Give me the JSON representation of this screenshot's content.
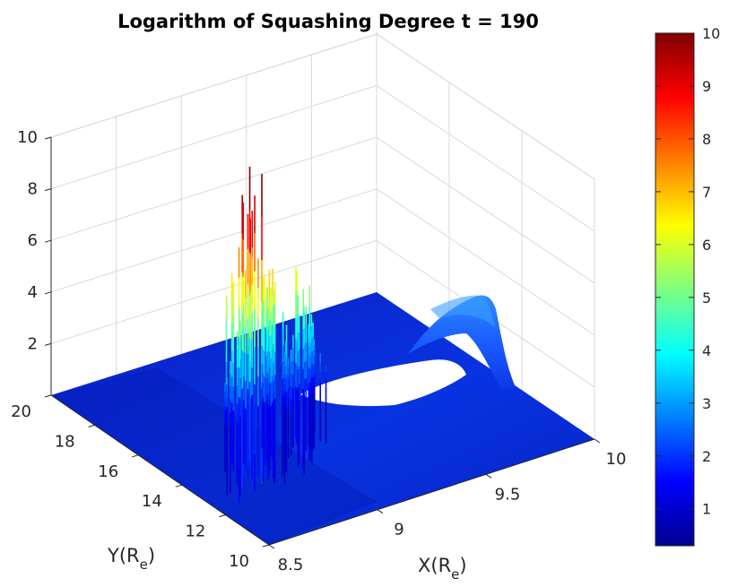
{
  "chart_data": {
    "type": "surface",
    "title": "Logarithm of Squashing Degree t = 190",
    "xlabel": "X(R",
    "xlabel_sub": "e",
    "xlabel_close": ")",
    "ylabel": "Y(R",
    "ylabel_sub": "e",
    "ylabel_close": ")",
    "colormap": "jet",
    "xlim": [
      8.5,
      10
    ],
    "ylim": [
      10,
      20
    ],
    "zlim": [
      0,
      10
    ],
    "x_ticks": [
      "8.5",
      "9",
      "9.5",
      "10"
    ],
    "y_ticks": [
      "10",
      "12",
      "14",
      "16",
      "18",
      "20"
    ],
    "z_ticks": [
      "2",
      "4",
      "6",
      "8",
      "10"
    ],
    "colorbar": {
      "range": [
        0.3,
        10
      ],
      "ticks": [
        "1",
        "2",
        "3",
        "4",
        "5",
        "6",
        "7",
        "8",
        "9",
        "10"
      ]
    },
    "grid": true,
    "features": [
      {
        "name": "spike cluster 1",
        "x_range": [
          8.85,
          9.1
        ],
        "y_center": 15.5,
        "peak": 10
      },
      {
        "name": "spike cluster 2",
        "x_range": [
          9.1,
          9.3
        ],
        "y_center": 15.5,
        "peak": 6
      },
      {
        "name": "ridge",
        "x_center": 9.6,
        "y_range": [
          13,
          17
        ],
        "peak": 3.8
      }
    ]
  }
}
